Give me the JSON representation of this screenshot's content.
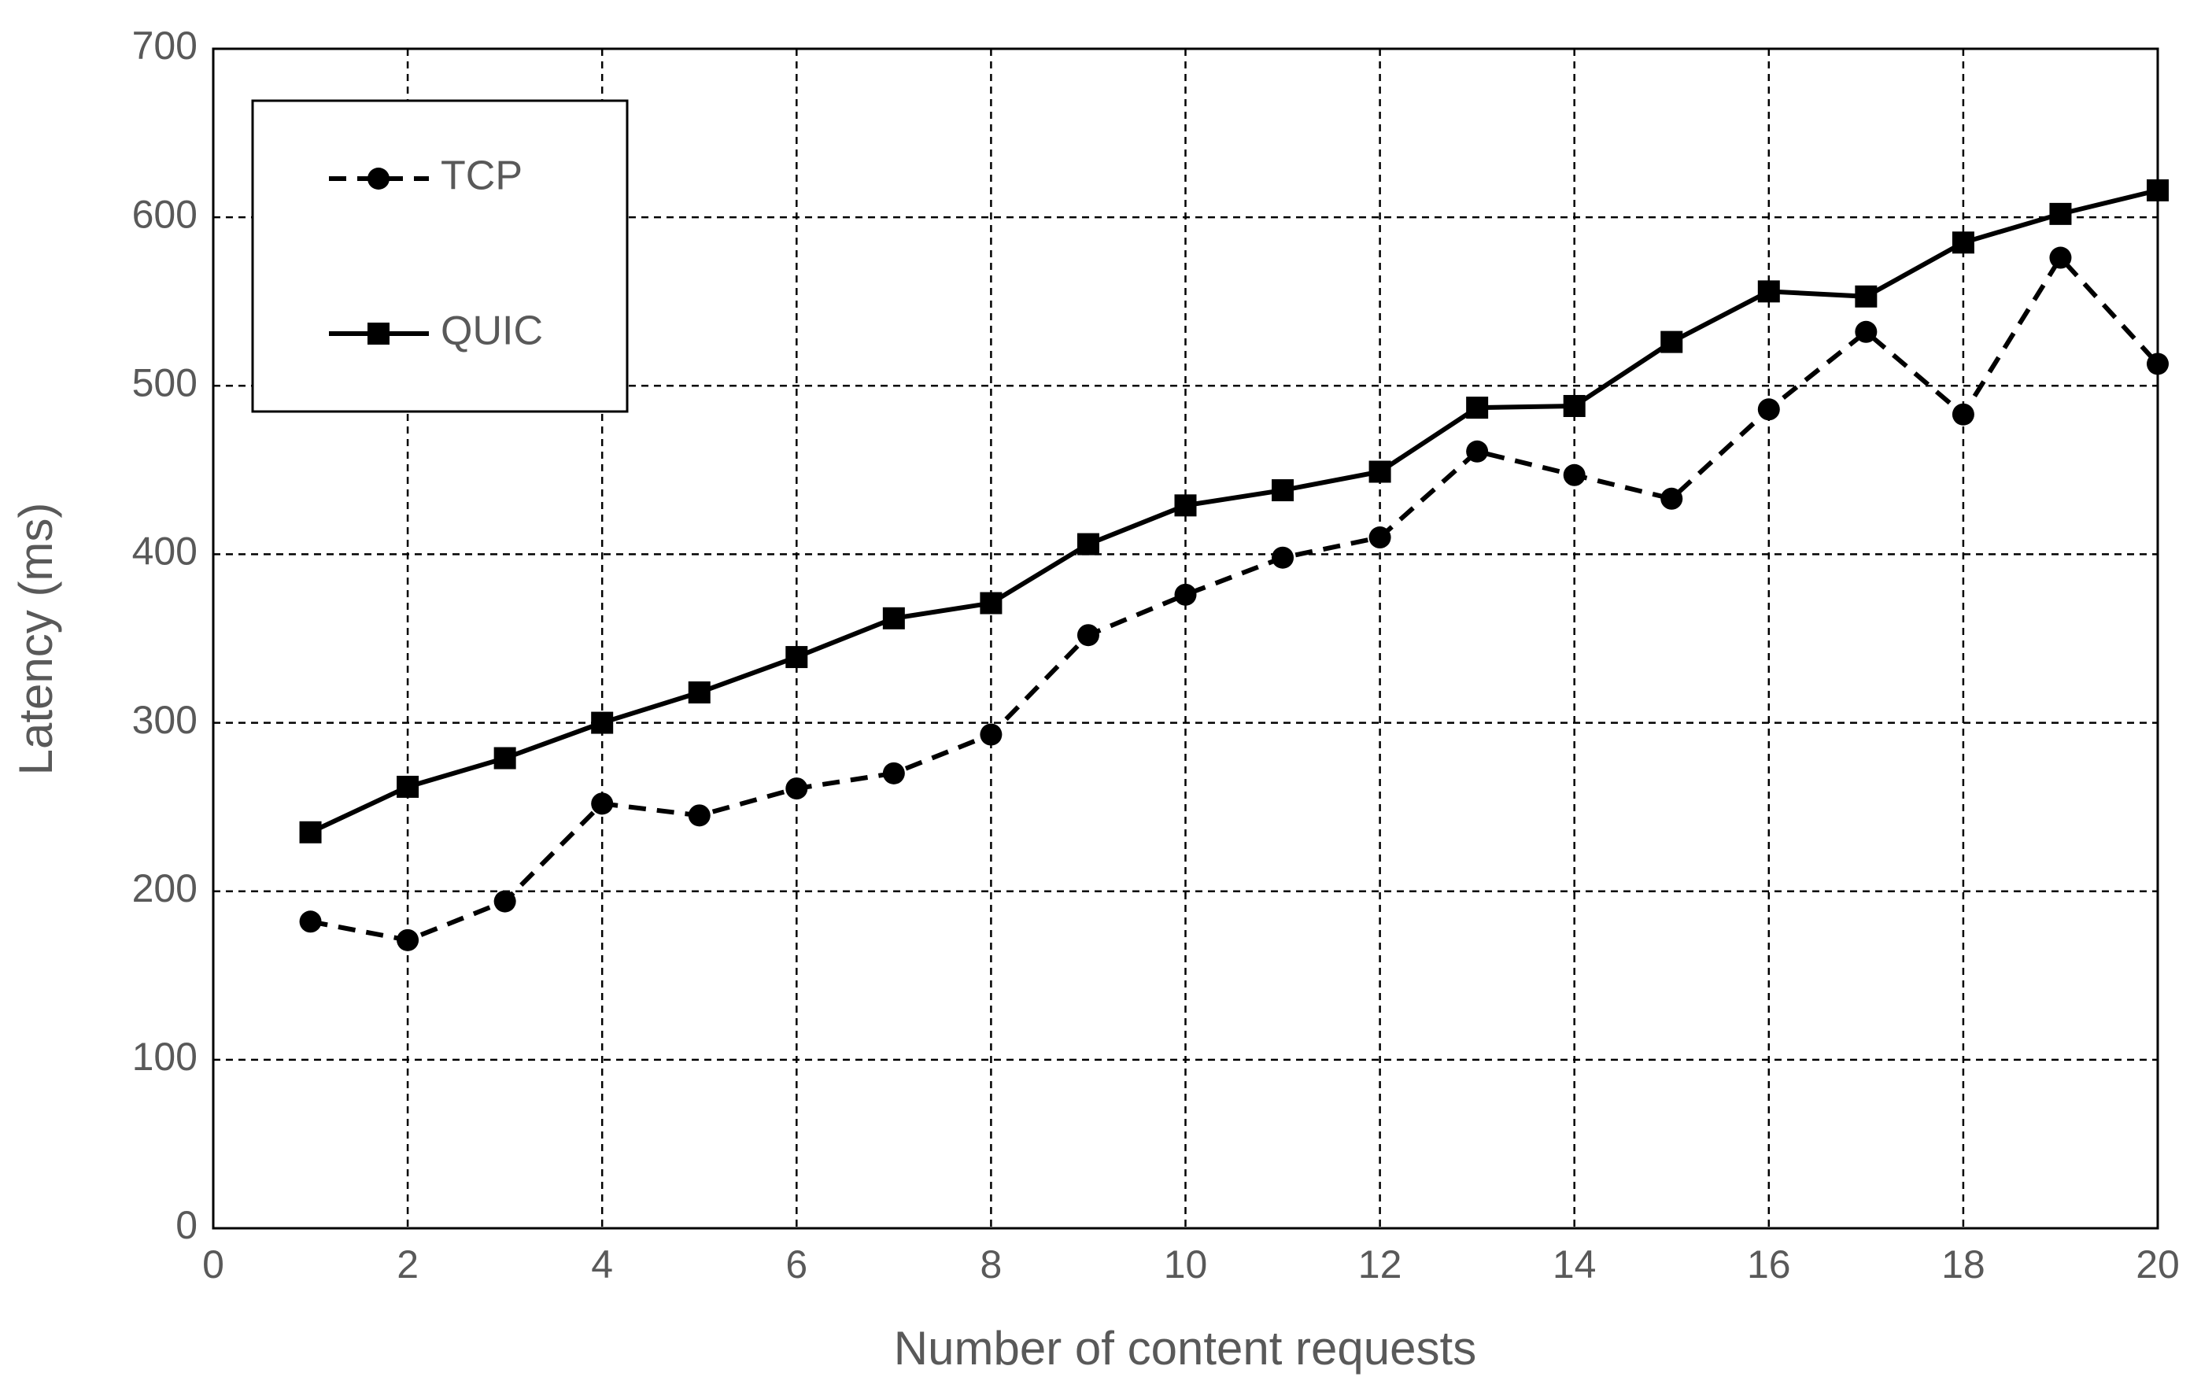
{
  "chart_data": {
    "type": "line",
    "x_label": "Number of content requests",
    "y_label": "Latency (ms)",
    "x": [
      1,
      2,
      3,
      4,
      5,
      6,
      7,
      8,
      9,
      10,
      11,
      12,
      13,
      14,
      15,
      16,
      17,
      18,
      19,
      20
    ],
    "series": [
      {
        "name": "TCP",
        "color": "#000000",
        "line_style": "dashed",
        "marker": "circle",
        "values": [
          182,
          171,
          194,
          252,
          245,
          261,
          270,
          293,
          352,
          376,
          398,
          410,
          461,
          447,
          433,
          486,
          532,
          483,
          576,
          513
        ]
      },
      {
        "name": "QUIC",
        "color": "#000000",
        "line_style": "solid",
        "marker": "square",
        "values": [
          235,
          262,
          279,
          300,
          318,
          339,
          362,
          371,
          406,
          429,
          438,
          449,
          487,
          488,
          526,
          556,
          553,
          585,
          602,
          616
        ]
      }
    ],
    "xlim": [
      0,
      20
    ],
    "xticks": [
      0,
      2,
      4,
      6,
      8,
      10,
      12,
      14,
      16,
      18,
      20
    ],
    "ylim": [
      0,
      700
    ],
    "yticks": [
      0,
      100,
      200,
      300,
      400,
      500,
      600,
      700
    ],
    "grid": true,
    "legend": "upper left"
  }
}
